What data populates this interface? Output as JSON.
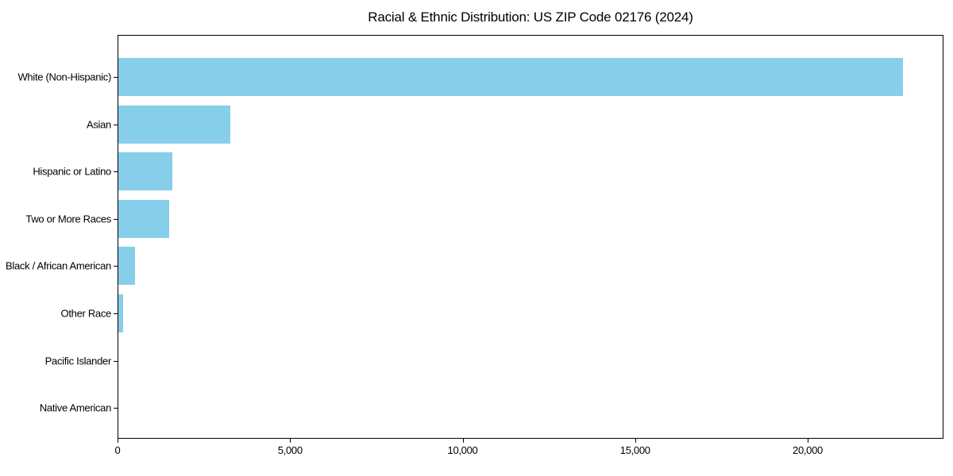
{
  "chart_data": {
    "type": "bar",
    "orientation": "horizontal",
    "title": "Racial & Ethnic Distribution: US ZIP Code 02176 (2024)",
    "categories": [
      "White (Non-Hispanic)",
      "Asian",
      "Hispanic or Latino",
      "Two or More Races",
      "Black / African American",
      "Other Race",
      "Pacific Islander",
      "Native American"
    ],
    "values": [
      22740,
      3250,
      1560,
      1470,
      480,
      140,
      0,
      0
    ],
    "xlabel": "",
    "ylabel": "",
    "xlim": [
      0,
      23900
    ],
    "x_ticks": [
      0,
      5000,
      10000,
      15000,
      20000
    ],
    "x_tick_labels": [
      "0",
      "5,000",
      "10,000",
      "15,000",
      "20,000"
    ],
    "bar_color": "#87CEEB",
    "axis_color": "#000000",
    "background_color": "#ffffff",
    "grid": false,
    "legend": false
  }
}
